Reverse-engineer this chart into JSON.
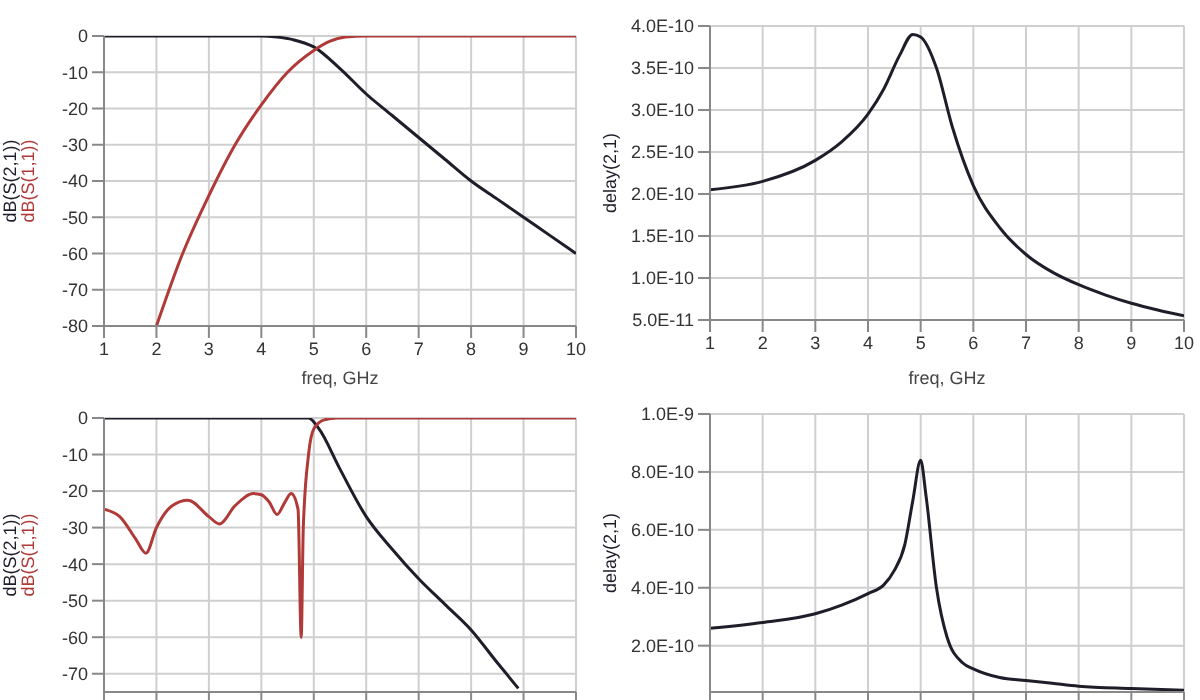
{
  "chart_data": [
    {
      "type": "line",
      "xlabel": "freq, GHz",
      "xlim": [
        1,
        10
      ],
      "xticks": [
        1,
        2,
        3,
        4,
        5,
        6,
        7,
        8,
        9,
        10
      ],
      "ylim": [
        -80,
        0
      ],
      "yticks": [
        -80,
        -70,
        -60,
        -50,
        -40,
        -30,
        -20,
        -10,
        0
      ],
      "grid": true,
      "series": [
        {
          "name": "dB(S(2,1))",
          "color": "#1e1e2a",
          "x": [
            1,
            2,
            3,
            4,
            4.3,
            4.6,
            5,
            5.5,
            6,
            6.5,
            7,
            7.5,
            8,
            8.5,
            9,
            9.5,
            10
          ],
          "values": [
            0,
            0,
            0,
            0,
            -0.3,
            -1,
            -3,
            -9,
            -16,
            -22,
            -28,
            -34,
            -40,
            -45,
            -50,
            -55,
            -60
          ]
        },
        {
          "name": "dB(S(1,1))",
          "color": "#b03a38",
          "x": [
            2,
            2.5,
            3,
            3.5,
            4,
            4.5,
            5,
            5.3,
            5.6,
            6,
            7,
            8,
            9,
            10
          ],
          "values": [
            -80,
            -60,
            -44,
            -30,
            -19,
            -10,
            -4,
            -1.5,
            -0.3,
            0,
            0,
            0,
            0,
            0
          ]
        }
      ]
    },
    {
      "type": "line",
      "xlabel": "freq, GHz",
      "ylabel": "delay(2,1)",
      "xlim": [
        1,
        10
      ],
      "xticks": [
        1,
        2,
        3,
        4,
        5,
        6,
        7,
        8,
        9,
        10
      ],
      "ylim": [
        5e-11,
        4e-10
      ],
      "yticks": [
        {
          "value": 5e-11,
          "label": "5.0E-11"
        },
        {
          "value": 1e-10,
          "label": "1.0E-10"
        },
        {
          "value": 1.5e-10,
          "label": "1.5E-10"
        },
        {
          "value": 2e-10,
          "label": "2.0E-10"
        },
        {
          "value": 2.5e-10,
          "label": "2.5E-10"
        },
        {
          "value": 3e-10,
          "label": "3.0E-10"
        },
        {
          "value": 3.5e-10,
          "label": "3.5E-10"
        },
        {
          "value": 4e-10,
          "label": "4.0E-10"
        }
      ],
      "grid": true,
      "series": [
        {
          "color": "#1e1e2a",
          "x": [
            1,
            2,
            3,
            3.5,
            4,
            4.3,
            4.6,
            4.85,
            5,
            5.3,
            5.6,
            6,
            6.5,
            7,
            7.5,
            8,
            8.5,
            9,
            9.5,
            10
          ],
          "values": [
            2.05e-10,
            2.15e-10,
            2.4e-10,
            2.62e-10,
            2.95e-10,
            3.25e-10,
            3.65e-10,
            3.9e-10,
            3.87e-10,
            3.5e-10,
            2.8e-10,
            2.1e-10,
            1.6e-10,
            1.28e-10,
            1.07e-10,
            9.2e-11,
            8e-11,
            7e-11,
            6.2e-11,
            5.5e-11
          ]
        }
      ]
    },
    {
      "type": "line",
      "xlim": [
        1,
        10
      ],
      "xticks": [
        1,
        2,
        3,
        4,
        5,
        6,
        7,
        8,
        9,
        10
      ],
      "ylim": [
        -75,
        0
      ],
      "yticks": [
        -70,
        -60,
        -50,
        -40,
        -30,
        -20,
        -10,
        0
      ],
      "grid": true,
      "tick_labels": "y",
      "series": [
        {
          "name": "dB(S(2,1))",
          "color": "#1e1e2a",
          "x": [
            1,
            2,
            3,
            4,
            4.9,
            5.1,
            5.5,
            6,
            6.5,
            7,
            7.5,
            8,
            8.5,
            8.9
          ],
          "values": [
            0,
            0,
            0,
            0,
            0,
            -3,
            -14,
            -27,
            -36,
            -44,
            -51,
            -58,
            -67,
            -74
          ]
        },
        {
          "name": "dB(S(1,1))",
          "color": "#b03a38",
          "x": [
            1,
            1.3,
            1.6,
            1.8,
            2,
            2.3,
            2.6,
            3,
            3.2,
            3.5,
            3.85,
            4,
            4.15,
            4.3,
            4.45,
            4.57,
            4.7,
            4.76,
            4.8,
            4.9,
            5,
            5.2,
            5.45,
            6,
            7,
            8,
            9,
            10
          ],
          "values": [
            -25,
            -27,
            -33,
            -37,
            -30,
            -24,
            -22.5,
            -27,
            -29,
            -24,
            -20.7,
            -21,
            -23,
            -26.4,
            -23,
            -20.7,
            -25,
            -60,
            -30,
            -10,
            -3,
            -0.5,
            0,
            0,
            0,
            0,
            0,
            0
          ]
        }
      ]
    },
    {
      "type": "line",
      "ylabel": "delay(2,1)",
      "xlim": [
        1,
        10
      ],
      "xticks": [
        1,
        2,
        3,
        4,
        5,
        6,
        7,
        8,
        9,
        10
      ],
      "ylim": [
        4e-11,
        1e-09
      ],
      "yticks": [
        {
          "value": 2e-10,
          "label": "2.0E-10"
        },
        {
          "value": 4e-10,
          "label": "4.0E-10"
        },
        {
          "value": 6e-10,
          "label": "6.0E-10"
        },
        {
          "value": 8e-10,
          "label": "8.0E-10"
        },
        {
          "value": 1e-09,
          "label": "1.0E-9"
        }
      ],
      "grid": true,
      "tick_labels": "y",
      "series": [
        {
          "color": "#1e1e2a",
          "x": [
            1,
            2,
            3,
            3.5,
            4,
            4.3,
            4.5,
            4.7,
            4.85,
            5,
            5.1,
            5.3,
            5.5,
            5.8,
            6,
            6.5,
            7,
            7.5,
            8,
            9,
            10
          ],
          "values": [
            2.6e-10,
            2.8e-10,
            3.1e-10,
            3.4e-10,
            3.8e-10,
            4.1e-10,
            4.6e-10,
            5.5e-10,
            7e-10,
            8.4e-10,
            7.2e-10,
            4e-10,
            2.3e-10,
            1.4e-10,
            1.2e-10,
            9e-11,
            8e-11,
            7e-11,
            6e-11,
            5.2e-11,
            4.6e-11
          ]
        }
      ]
    }
  ]
}
